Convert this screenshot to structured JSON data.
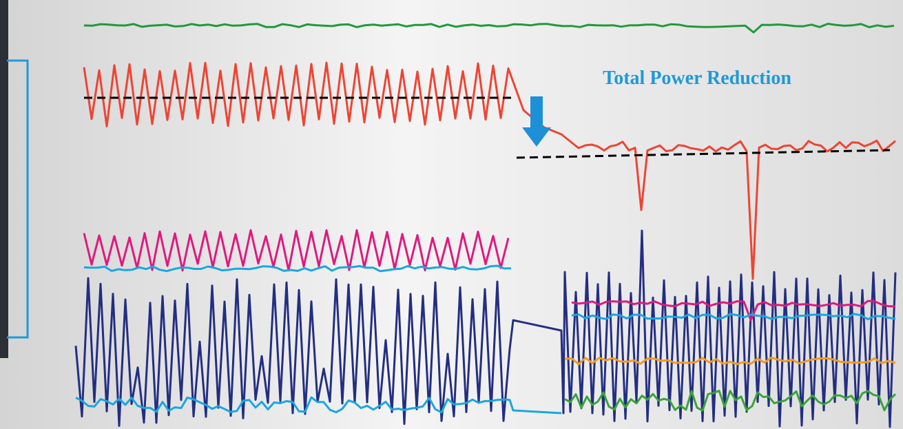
{
  "annotation": "Total Power Reduction"
}
